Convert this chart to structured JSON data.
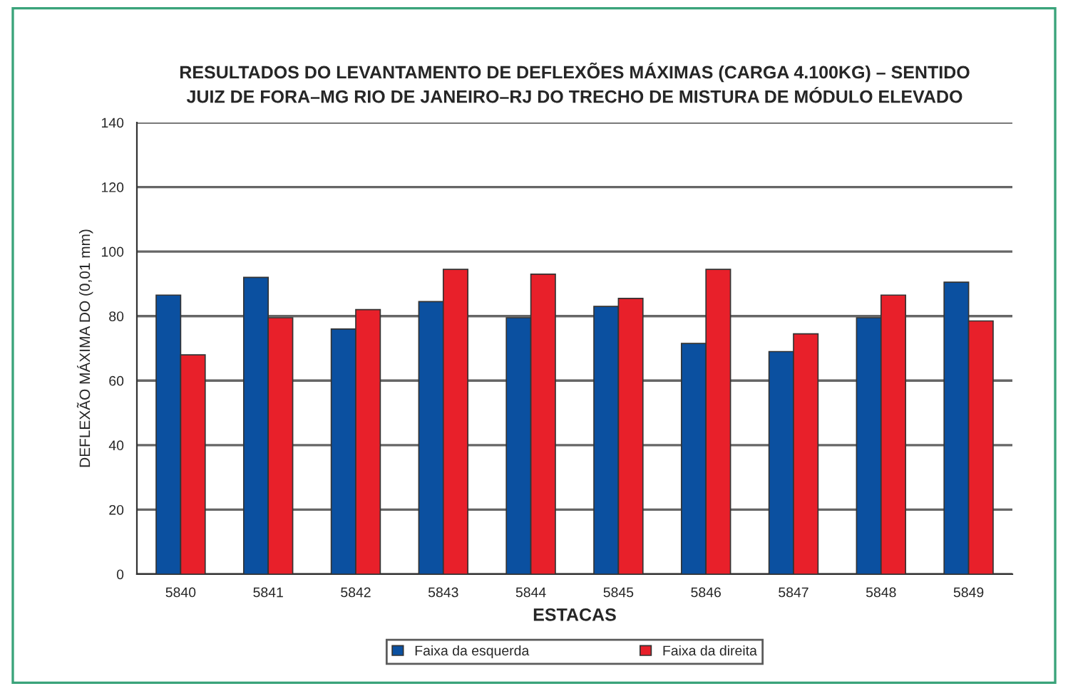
{
  "chart_data": {
    "type": "bar",
    "title": "RESULTADOS DO LEVANTAMENTO DE DEFLEXÕES MÁXIMAS (CARGA 4.100KG) – SENTIDO\nJUIZ DE FORA–MG RIO DE JANEIRO–RJ DO TRECHO DE MISTURA DE MÓDULO ELEVADO",
    "xlabel": "ESTACAS",
    "ylabel": "DEFLEXÃO MÁXIMA DO (0,01 mm)",
    "categories": [
      "5840",
      "5841",
      "5842",
      "5843",
      "5844",
      "5845",
      "5846",
      "5847",
      "5848",
      "5849"
    ],
    "series": [
      {
        "name": "Faixa da esquerda",
        "color": "#0b50a0",
        "values": [
          86.5,
          92,
          76,
          84.5,
          79.5,
          83,
          71.5,
          69,
          79.5,
          90.5
        ]
      },
      {
        "name": "Faixa da direita",
        "color": "#e8202a",
        "values": [
          68,
          79.5,
          82,
          94.5,
          93,
          85.5,
          94.5,
          74.5,
          86.5,
          78.5
        ]
      }
    ],
    "ylim": [
      0,
      140
    ],
    "yticks": [
      0,
      20,
      40,
      60,
      80,
      100,
      120,
      140
    ],
    "grid": "y",
    "legend": "bottom"
  }
}
